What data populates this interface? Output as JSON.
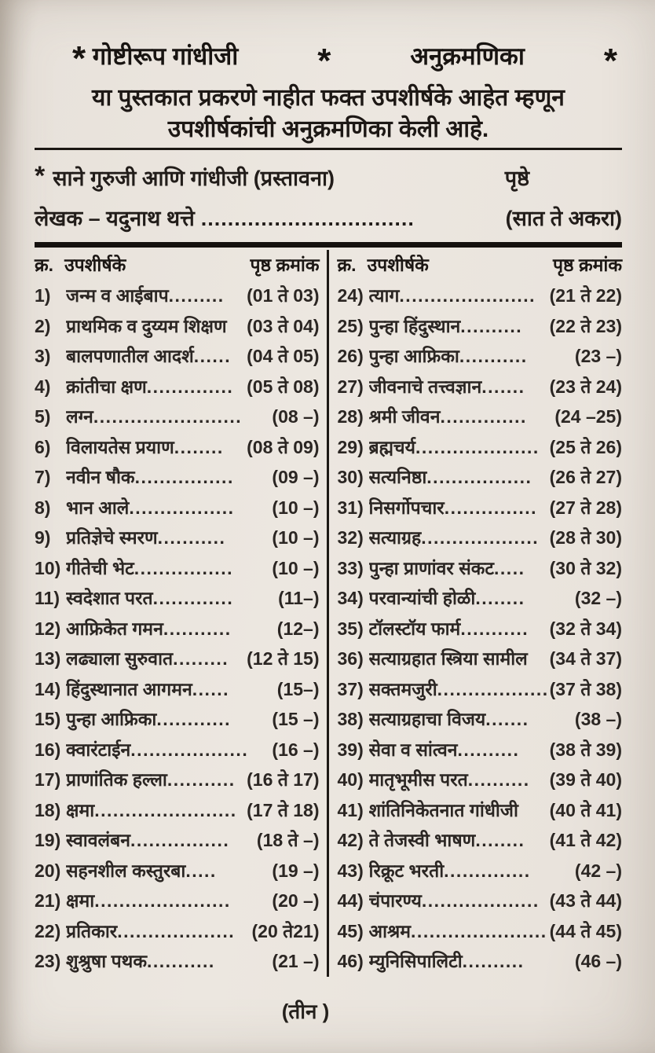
{
  "header": {
    "star": "*",
    "book_title": "गोष्टीरूप गांधीजी",
    "section_title": "अनुक्रमणिका",
    "subtitle_line1": "या पुस्तकात प्रकरणे नाहीत फक्त उपशीर्षके आहेत म्हणून",
    "subtitle_line2": "उपशीर्षकांची अनुक्रमणिका केली आहे."
  },
  "preface": {
    "star": "*",
    "title": "साने गुरुजी आणि गांधीजी (प्रस्तावना)",
    "pages_label": "पृष्ठे",
    "author_line": "लेखक – यदुनाथ थत्ते",
    "dots": "................................",
    "pages": "(सात ते अकरा)"
  },
  "toc": {
    "col_header": {
      "number": "क्र.",
      "title": "उपशीर्षके",
      "pages": "पृष्ठ क्रमांक"
    },
    "left": [
      {
        "n": "1)",
        "t": "जन्म व आईबाप",
        "d": ".........",
        "p": "(01 ते 03)"
      },
      {
        "n": "2)",
        "t": "प्राथमिक व दुय्यम शिक्षण",
        "d": "",
        "p": "(03 ते 04)"
      },
      {
        "n": "3)",
        "t": "बालपणातील आदर्श",
        "d": "......",
        "p": "(04 ते 05)"
      },
      {
        "n": "4)",
        "t": "क्रांतीचा क्षण",
        "d": "..............",
        "p": "(05 ते 08)"
      },
      {
        "n": "5)",
        "t": "लग्न",
        "d": "........................",
        "p": "(08 –)"
      },
      {
        "n": "6)",
        "t": "विलायतेस प्रयाण",
        "d": "........",
        "p": "(08 ते 09)"
      },
      {
        "n": "7)",
        "t": "नवीन षौक",
        "d": "................",
        "p": "(09 –)"
      },
      {
        "n": "8)",
        "t": "भान आले",
        "d": ".................",
        "p": "(10 –)"
      },
      {
        "n": "9)",
        "t": "प्रतिज्ञेचे स्मरण",
        "d": "...........",
        "p": "(10 –)"
      },
      {
        "n": "10)",
        "t": "गीतेची भेट",
        "d": "................",
        "p": "(10 –)"
      },
      {
        "n": "11)",
        "t": "स्वदेशात परत",
        "d": ".............",
        "p": "(11–)"
      },
      {
        "n": "12)",
        "t": "आफ्रिकेत गमन",
        "d": "...........",
        "p": "(12–)"
      },
      {
        "n": "13)",
        "t": "लढ्याला सुरुवात",
        "d": ".........",
        "p": "(12 ते 15)"
      },
      {
        "n": "14)",
        "t": "हिंदुस्थानात आगमन",
        "d": "......",
        "p": "(15–)"
      },
      {
        "n": "15)",
        "t": "पुन्हा आफ्रिका",
        "d": "............",
        "p": "(15 –)"
      },
      {
        "n": "16)",
        "t": "क्वारंटाईन",
        "d": "...................",
        "p": "(16 –)"
      },
      {
        "n": "17)",
        "t": "प्राणांतिक हल्ला",
        "d": "...........",
        "p": "(16 ते 17)"
      },
      {
        "n": "18)",
        "t": "क्षमा",
        "d": ".......................",
        "p": "(17 ते 18)"
      },
      {
        "n": "19)",
        "t": "स्वावलंबन",
        "d": "................",
        "p": "(18 ते –)"
      },
      {
        "n": "20)",
        "t": "सहनशील कस्तुरबा",
        "d": ".....",
        "p": "(19 –)"
      },
      {
        "n": "21)",
        "t": "क्षमा",
        "d": "......................",
        "p": "(20 –)"
      },
      {
        "n": "22)",
        "t": "प्रतिकार",
        "d": "...................",
        "p": "(20 ते21)"
      },
      {
        "n": "23)",
        "t": "शुश्रुषा पथक",
        "d": "...........",
        "p": "(21 –)"
      }
    ],
    "right": [
      {
        "n": "24)",
        "t": "त्याग",
        "d": "......................",
        "p": "(21 ते 22)"
      },
      {
        "n": "25)",
        "t": "पुन्हा हिंदुस्थान",
        "d": "..........",
        "p": "(22 ते 23)"
      },
      {
        "n": "26)",
        "t": "पुन्हा आफ्रिका",
        "d": "...........",
        "p": "(23 –)"
      },
      {
        "n": "27)",
        "t": "जीवनाचे तत्त्वज्ञान",
        "d": ".......",
        "p": "(23 ते 24)"
      },
      {
        "n": "28)",
        "t": "श्रमी जीवन",
        "d": "..............",
        "p": "(24 –25)"
      },
      {
        "n": "29)",
        "t": "ब्रह्मचर्य",
        "d": "....................",
        "p": "(25 ते 26)"
      },
      {
        "n": "30)",
        "t": "सत्यनिष्ठा",
        "d": ".................",
        "p": "(26 ते 27)"
      },
      {
        "n": "31)",
        "t": "निसर्गोपचार",
        "d": "...............",
        "p": "(27 ते 28)"
      },
      {
        "n": "32)",
        "t": "सत्याग्रह",
        "d": "...................",
        "p": "(28 ते 30)"
      },
      {
        "n": "33)",
        "t": "पुन्हा प्राणांवर संकट",
        "d": ".....",
        "p": "(30 ते 32)"
      },
      {
        "n": "34)",
        "t": "परवान्यांची होळी",
        "d": "........",
        "p": "(32 –)"
      },
      {
        "n": "35)",
        "t": "टॉलस्टॉय फार्म",
        "d": "...........",
        "p": "(32 ते 34)"
      },
      {
        "n": "36)",
        "t": "सत्याग्रहात स्त्रिया सामील",
        "d": "",
        "p": "(34 ते 37)"
      },
      {
        "n": "37)",
        "t": "सक्तमजुरी",
        "d": "...................",
        "p": "(37 ते 38)"
      },
      {
        "n": "38)",
        "t": "सत्याग्रहाचा विजय",
        "d": ".......",
        "p": "(38 –)"
      },
      {
        "n": "39)",
        "t": "सेवा व सांत्वन",
        "d": "..........",
        "p": "(38 ते 39)"
      },
      {
        "n": "40)",
        "t": "मातृभूमीस परत",
        "d": "..........",
        "p": "(39 ते 40)"
      },
      {
        "n": "41)",
        "t": "शांतिनिकेतनात गांधीजी",
        "d": "",
        "p": "(40 ते 41)"
      },
      {
        "n": "42)",
        "t": "ते तेजस्वी भाषण",
        "d": "........",
        "p": "(41 ते 42)"
      },
      {
        "n": "43)",
        "t": "रिक्रूट भरती",
        "d": "..............",
        "p": "(42 –)"
      },
      {
        "n": "44)",
        "t": "चंपारण्य",
        "d": "...................",
        "p": "(43 ते 44)"
      },
      {
        "n": "45)",
        "t": "आश्रम",
        "d": "......................",
        "p": "(44 ते 45)"
      },
      {
        "n": "46)",
        "t": "म्युनिसिपालिटी",
        "d": "..........",
        "p": "(46 –)"
      }
    ]
  },
  "footer": {
    "page_number": "(तीन )"
  },
  "colors": {
    "paper": "#e9e3dc",
    "ink": "#2a2522",
    "rule": "#15110e"
  }
}
